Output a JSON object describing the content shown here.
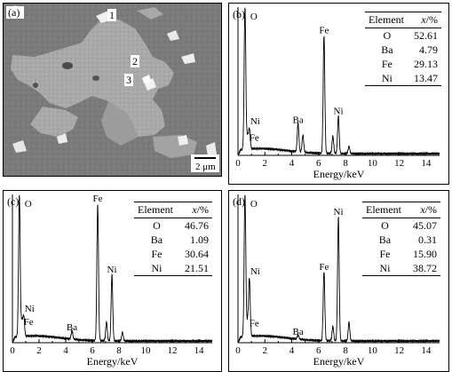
{
  "figure": {
    "panel_a": {
      "label": "(a)",
      "scale_bar": "2 μm",
      "points": [
        "1",
        "2",
        "3"
      ]
    }
  },
  "chart_data": [
    {
      "panel": "(b)",
      "type": "line",
      "xlabel": "Energy/keV",
      "ylabel": "",
      "xlim": [
        0,
        15
      ],
      "xticks": [
        0,
        2,
        4,
        6,
        8,
        10,
        12,
        14
      ],
      "peaks": [
        {
          "label": "O",
          "x": 0.52,
          "height": 1.0
        },
        {
          "label": "Fe",
          "x": 0.71,
          "height": 0.09
        },
        {
          "label": "Ni",
          "x": 0.85,
          "height": 0.14
        },
        {
          "label": "Ba",
          "x": 4.47,
          "height": 0.2
        },
        {
          "label": "",
          "x": 4.83,
          "height": 0.12
        },
        {
          "label": "Fe",
          "x": 6.4,
          "height": 0.82
        },
        {
          "label": "",
          "x": 7.06,
          "height": 0.12
        },
        {
          "label": "Ni",
          "x": 7.47,
          "height": 0.26
        },
        {
          "label": "",
          "x": 8.26,
          "height": 0.05
        }
      ],
      "table": {
        "headers": [
          "Element",
          "x/%"
        ],
        "rows": [
          [
            "O",
            "52.61"
          ],
          [
            "Ba",
            "4.79"
          ],
          [
            "Fe",
            "29.13"
          ],
          [
            "Ni",
            "13.47"
          ]
        ]
      }
    },
    {
      "panel": "(c)",
      "type": "line",
      "xlabel": "Energy/keV",
      "ylabel": "",
      "xlim": [
        0,
        15
      ],
      "xticks": [
        0,
        2,
        4,
        6,
        8,
        10,
        12,
        14
      ],
      "peaks": [
        {
          "label": "O",
          "x": 0.52,
          "height": 1.0
        },
        {
          "label": "Fe",
          "x": 0.71,
          "height": 0.11
        },
        {
          "label": "Ni",
          "x": 0.85,
          "height": 0.14
        },
        {
          "label": "Ba",
          "x": 4.47,
          "height": 0.06
        },
        {
          "label": "Fe",
          "x": 6.4,
          "height": 0.95
        },
        {
          "label": "",
          "x": 7.06,
          "height": 0.13
        },
        {
          "label": "Ni",
          "x": 7.47,
          "height": 0.46
        },
        {
          "label": "",
          "x": 8.26,
          "height": 0.06
        }
      ],
      "table": {
        "headers": [
          "Element",
          "x/%"
        ],
        "rows": [
          [
            "O",
            "46.76"
          ],
          [
            "Ba",
            "1.09"
          ],
          [
            "Fe",
            "30.64"
          ],
          [
            "Ni",
            "21.51"
          ]
        ]
      }
    },
    {
      "panel": "(d)",
      "type": "line",
      "xlabel": "Energy/keV",
      "ylabel": "",
      "xlim": [
        0,
        15
      ],
      "xticks": [
        0,
        2,
        4,
        6,
        8,
        10,
        12,
        14
      ],
      "peaks": [
        {
          "label": "O",
          "x": 0.52,
          "height": 1.0
        },
        {
          "label": "Fe",
          "x": 0.71,
          "height": 0.1
        },
        {
          "label": "Ni",
          "x": 0.85,
          "height": 0.4
        },
        {
          "label": "Ba",
          "x": 4.47,
          "height": 0.03
        },
        {
          "label": "Fe",
          "x": 6.4,
          "height": 0.48
        },
        {
          "label": "",
          "x": 7.06,
          "height": 0.1
        },
        {
          "label": "Ni",
          "x": 7.47,
          "height": 0.86
        },
        {
          "label": "",
          "x": 8.26,
          "height": 0.13
        }
      ],
      "table": {
        "headers": [
          "Element",
          "x/%"
        ],
        "rows": [
          [
            "O",
            "45.07"
          ],
          [
            "Ba",
            "0.31"
          ],
          [
            "Fe",
            "15.90"
          ],
          [
            "Ni",
            "38.72"
          ]
        ]
      }
    }
  ]
}
